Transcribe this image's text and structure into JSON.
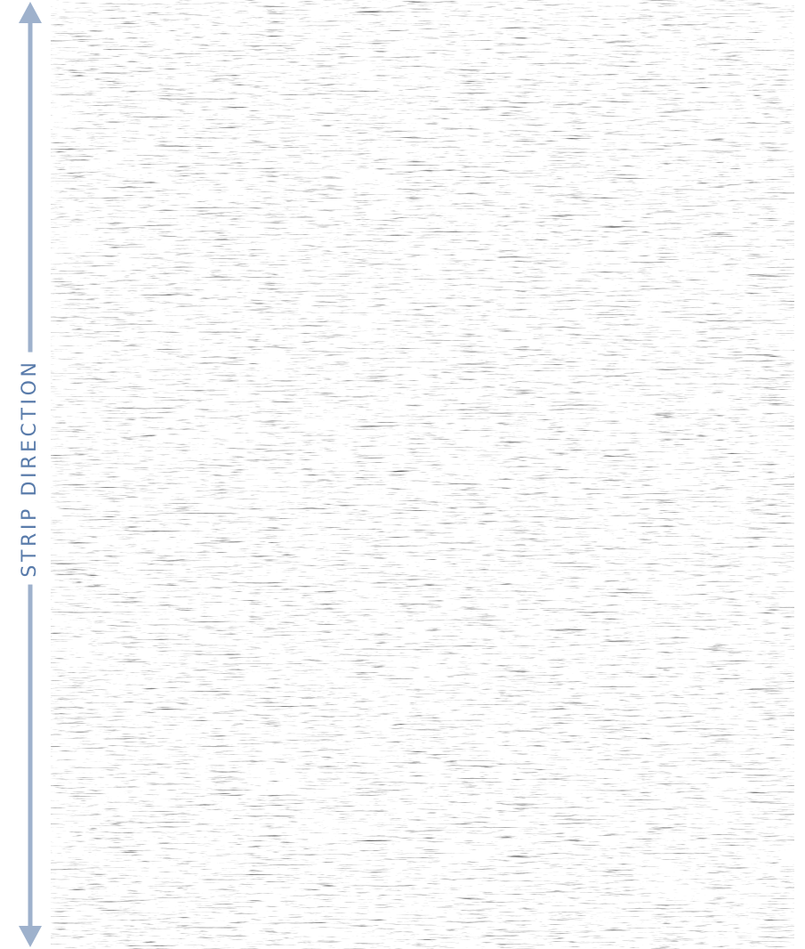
{
  "strip_direction": {
    "label": "STRIP DIRECTION",
    "arrow_color": "#9eb1cc",
    "label_color": "#5a7cab",
    "arrow_icon": "double-headed-vertical-arrow"
  },
  "texture": {
    "pattern": "horizontal-streak-noise",
    "base_gray": "#6b6b6b",
    "dark_streak": "#2e2e2e",
    "light_streak": "#e6e6e6"
  }
}
